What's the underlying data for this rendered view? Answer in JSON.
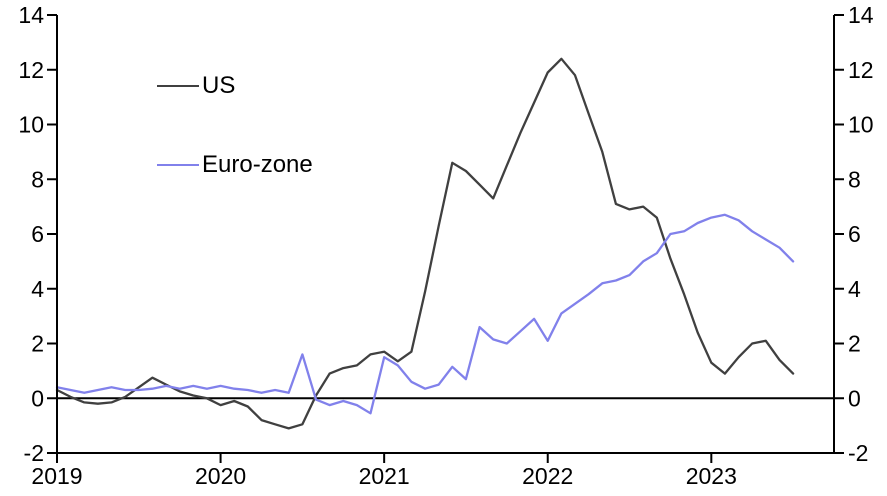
{
  "chart_data": {
    "type": "line",
    "title": "",
    "x_start": "2019-01",
    "x_freq": "monthly",
    "x_domain_months": 57,
    "x_tick_month_positions": [
      0,
      12,
      24,
      36,
      48
    ],
    "x_tick_labels": [
      "2019",
      "2020",
      "2021",
      "2022",
      "2023"
    ],
    "y_range": [
      -2,
      14
    ],
    "y_ticks": [
      -2,
      0,
      2,
      4,
      6,
      8,
      10,
      12,
      14
    ],
    "y_axis_sides": [
      "left",
      "right"
    ],
    "grid": false,
    "zero_line": true,
    "legend_position": "top-left-inside",
    "series": [
      {
        "name": "US",
        "color": "#404040",
        "values": [
          0.3,
          0.05,
          -0.15,
          -0.2,
          -0.15,
          0.05,
          0.4,
          0.75,
          0.5,
          0.25,
          0.1,
          0.0,
          -0.25,
          -0.1,
          -0.3,
          -0.8,
          -0.95,
          -1.1,
          -0.95,
          0.1,
          0.9,
          1.1,
          1.2,
          1.6,
          1.7,
          1.35,
          1.7,
          3.9,
          6.3,
          8.6,
          8.3,
          7.8,
          7.3,
          8.5,
          9.7,
          10.8,
          11.9,
          12.4,
          11.8,
          10.4,
          9.0,
          7.1,
          6.9,
          7.0,
          6.6,
          5.1,
          3.8,
          2.4,
          1.3,
          0.9,
          1.5,
          2.0,
          2.1,
          1.4,
          0.9
        ]
      },
      {
        "name": "Euro-zone",
        "color": "#8181EB",
        "values": [
          0.4,
          0.3,
          0.2,
          0.3,
          0.4,
          0.3,
          0.3,
          0.35,
          0.45,
          0.35,
          0.45,
          0.35,
          0.45,
          0.35,
          0.3,
          0.2,
          0.3,
          0.2,
          1.6,
          -0.05,
          -0.25,
          -0.1,
          -0.25,
          -0.55,
          1.5,
          1.2,
          0.6,
          0.35,
          0.5,
          1.15,
          0.7,
          2.6,
          2.15,
          2.0,
          2.45,
          2.9,
          2.1,
          3.1,
          3.45,
          3.8,
          4.2,
          4.3,
          4.5,
          5.0,
          5.3,
          6.0,
          6.1,
          6.4,
          6.6,
          6.7,
          6.5,
          6.1,
          5.8,
          5.5,
          5.0
        ]
      }
    ]
  },
  "legend": {
    "us_label": "US",
    "eurozone_label": "Euro-zone"
  },
  "colors": {
    "us_line": "#404040",
    "eurozone_line": "#8181EB",
    "axis": "#000000",
    "background": "#FFFFFF"
  }
}
